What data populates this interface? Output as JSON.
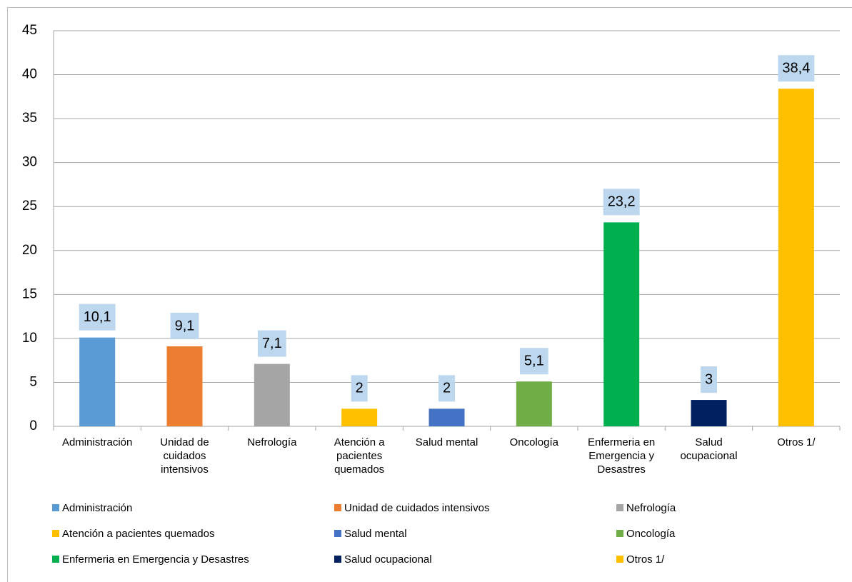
{
  "chart_data": {
    "type": "bar",
    "categories": [
      "Administración",
      "Unidad de cuidados intensivos",
      "Nefrología",
      "Atención a pacientes quemados",
      "Salud mental",
      "Oncología",
      "Enfermeria en Emergencia y Desastres",
      "Salud ocupacional",
      "Otros 1/"
    ],
    "values": [
      10.1,
      9.1,
      7.1,
      2,
      2,
      5.1,
      23.2,
      3,
      38.4
    ],
    "value_labels": [
      "10,1",
      "9,1",
      "7,1",
      "2",
      "2",
      "5,1",
      "23,2",
      "3",
      "38,4"
    ],
    "colors": [
      "#5b9bd5",
      "#ed7d31",
      "#a5a5a5",
      "#ffc000",
      "#4472c4",
      "#70ad47",
      "#00b050",
      "#002060",
      "#ffc000"
    ],
    "ylim": [
      0,
      45
    ],
    "yticks": [
      0,
      5,
      10,
      15,
      20,
      25,
      30,
      35,
      40,
      45
    ],
    "grid": true,
    "legend": "bottom"
  }
}
